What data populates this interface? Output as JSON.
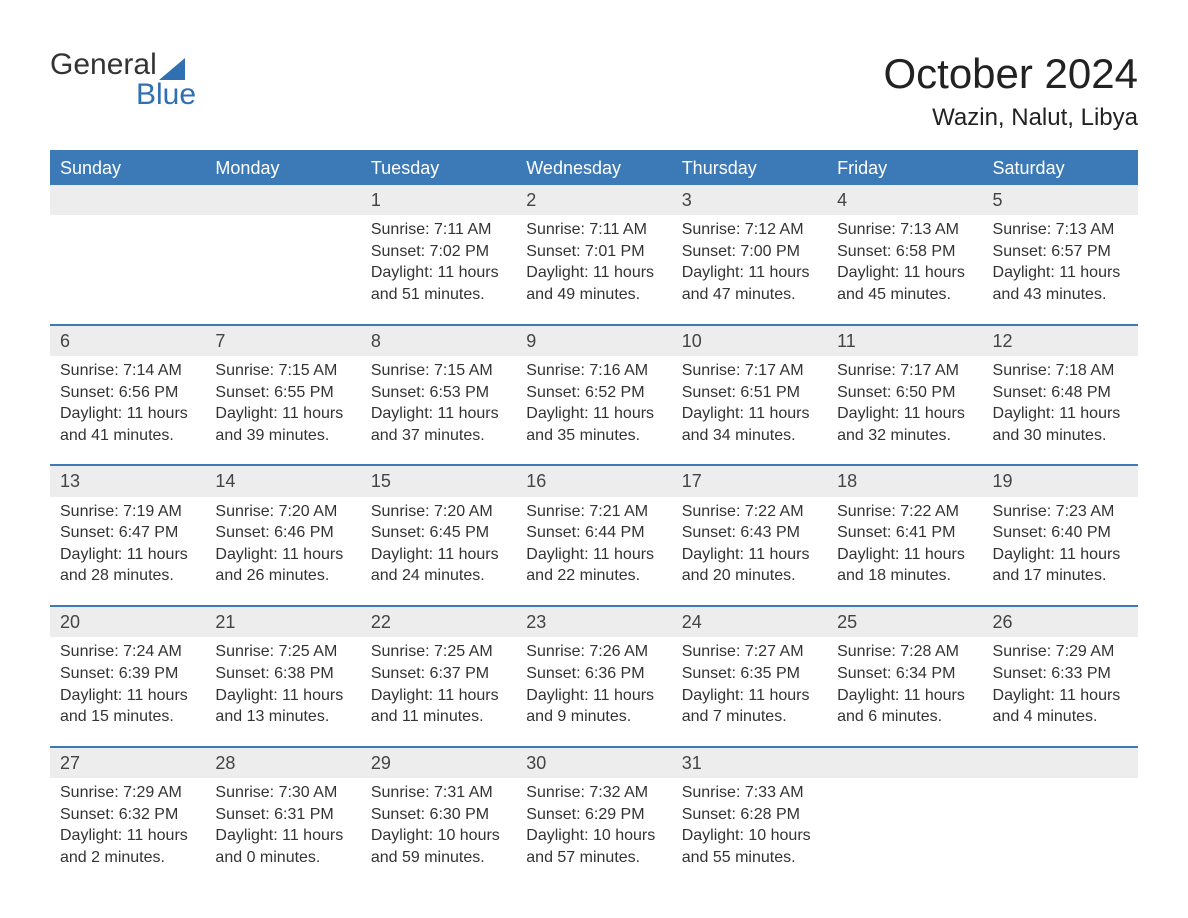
{
  "logo": {
    "line1": "General",
    "line2": "Blue",
    "accent_color": "#2f6fb2"
  },
  "title": "October 2024",
  "location": "Wazin, Nalut, Libya",
  "colors": {
    "header_bg": "#3b79b7",
    "header_text": "#ffffff",
    "day_band_bg": "#ededed",
    "row_border": "#3b79b7",
    "text": "#333333",
    "background": "#ffffff"
  },
  "weekdays": [
    "Sunday",
    "Monday",
    "Tuesday",
    "Wednesday",
    "Thursday",
    "Friday",
    "Saturday"
  ],
  "weeks": [
    [
      {
        "day": "",
        "sunrise": "",
        "sunset": "",
        "daylight1": "",
        "daylight2": ""
      },
      {
        "day": "",
        "sunrise": "",
        "sunset": "",
        "daylight1": "",
        "daylight2": ""
      },
      {
        "day": "1",
        "sunrise": "Sunrise: 7:11 AM",
        "sunset": "Sunset: 7:02 PM",
        "daylight1": "Daylight: 11 hours",
        "daylight2": "and 51 minutes."
      },
      {
        "day": "2",
        "sunrise": "Sunrise: 7:11 AM",
        "sunset": "Sunset: 7:01 PM",
        "daylight1": "Daylight: 11 hours",
        "daylight2": "and 49 minutes."
      },
      {
        "day": "3",
        "sunrise": "Sunrise: 7:12 AM",
        "sunset": "Sunset: 7:00 PM",
        "daylight1": "Daylight: 11 hours",
        "daylight2": "and 47 minutes."
      },
      {
        "day": "4",
        "sunrise": "Sunrise: 7:13 AM",
        "sunset": "Sunset: 6:58 PM",
        "daylight1": "Daylight: 11 hours",
        "daylight2": "and 45 minutes."
      },
      {
        "day": "5",
        "sunrise": "Sunrise: 7:13 AM",
        "sunset": "Sunset: 6:57 PM",
        "daylight1": "Daylight: 11 hours",
        "daylight2": "and 43 minutes."
      }
    ],
    [
      {
        "day": "6",
        "sunrise": "Sunrise: 7:14 AM",
        "sunset": "Sunset: 6:56 PM",
        "daylight1": "Daylight: 11 hours",
        "daylight2": "and 41 minutes."
      },
      {
        "day": "7",
        "sunrise": "Sunrise: 7:15 AM",
        "sunset": "Sunset: 6:55 PM",
        "daylight1": "Daylight: 11 hours",
        "daylight2": "and 39 minutes."
      },
      {
        "day": "8",
        "sunrise": "Sunrise: 7:15 AM",
        "sunset": "Sunset: 6:53 PM",
        "daylight1": "Daylight: 11 hours",
        "daylight2": "and 37 minutes."
      },
      {
        "day": "9",
        "sunrise": "Sunrise: 7:16 AM",
        "sunset": "Sunset: 6:52 PM",
        "daylight1": "Daylight: 11 hours",
        "daylight2": "and 35 minutes."
      },
      {
        "day": "10",
        "sunrise": "Sunrise: 7:17 AM",
        "sunset": "Sunset: 6:51 PM",
        "daylight1": "Daylight: 11 hours",
        "daylight2": "and 34 minutes."
      },
      {
        "day": "11",
        "sunrise": "Sunrise: 7:17 AM",
        "sunset": "Sunset: 6:50 PM",
        "daylight1": "Daylight: 11 hours",
        "daylight2": "and 32 minutes."
      },
      {
        "day": "12",
        "sunrise": "Sunrise: 7:18 AM",
        "sunset": "Sunset: 6:48 PM",
        "daylight1": "Daylight: 11 hours",
        "daylight2": "and 30 minutes."
      }
    ],
    [
      {
        "day": "13",
        "sunrise": "Sunrise: 7:19 AM",
        "sunset": "Sunset: 6:47 PM",
        "daylight1": "Daylight: 11 hours",
        "daylight2": "and 28 minutes."
      },
      {
        "day": "14",
        "sunrise": "Sunrise: 7:20 AM",
        "sunset": "Sunset: 6:46 PM",
        "daylight1": "Daylight: 11 hours",
        "daylight2": "and 26 minutes."
      },
      {
        "day": "15",
        "sunrise": "Sunrise: 7:20 AM",
        "sunset": "Sunset: 6:45 PM",
        "daylight1": "Daylight: 11 hours",
        "daylight2": "and 24 minutes."
      },
      {
        "day": "16",
        "sunrise": "Sunrise: 7:21 AM",
        "sunset": "Sunset: 6:44 PM",
        "daylight1": "Daylight: 11 hours",
        "daylight2": "and 22 minutes."
      },
      {
        "day": "17",
        "sunrise": "Sunrise: 7:22 AM",
        "sunset": "Sunset: 6:43 PM",
        "daylight1": "Daylight: 11 hours",
        "daylight2": "and 20 minutes."
      },
      {
        "day": "18",
        "sunrise": "Sunrise: 7:22 AM",
        "sunset": "Sunset: 6:41 PM",
        "daylight1": "Daylight: 11 hours",
        "daylight2": "and 18 minutes."
      },
      {
        "day": "19",
        "sunrise": "Sunrise: 7:23 AM",
        "sunset": "Sunset: 6:40 PM",
        "daylight1": "Daylight: 11 hours",
        "daylight2": "and 17 minutes."
      }
    ],
    [
      {
        "day": "20",
        "sunrise": "Sunrise: 7:24 AM",
        "sunset": "Sunset: 6:39 PM",
        "daylight1": "Daylight: 11 hours",
        "daylight2": "and 15 minutes."
      },
      {
        "day": "21",
        "sunrise": "Sunrise: 7:25 AM",
        "sunset": "Sunset: 6:38 PM",
        "daylight1": "Daylight: 11 hours",
        "daylight2": "and 13 minutes."
      },
      {
        "day": "22",
        "sunrise": "Sunrise: 7:25 AM",
        "sunset": "Sunset: 6:37 PM",
        "daylight1": "Daylight: 11 hours",
        "daylight2": "and 11 minutes."
      },
      {
        "day": "23",
        "sunrise": "Sunrise: 7:26 AM",
        "sunset": "Sunset: 6:36 PM",
        "daylight1": "Daylight: 11 hours",
        "daylight2": "and 9 minutes."
      },
      {
        "day": "24",
        "sunrise": "Sunrise: 7:27 AM",
        "sunset": "Sunset: 6:35 PM",
        "daylight1": "Daylight: 11 hours",
        "daylight2": "and 7 minutes."
      },
      {
        "day": "25",
        "sunrise": "Sunrise: 7:28 AM",
        "sunset": "Sunset: 6:34 PM",
        "daylight1": "Daylight: 11 hours",
        "daylight2": "and 6 minutes."
      },
      {
        "day": "26",
        "sunrise": "Sunrise: 7:29 AM",
        "sunset": "Sunset: 6:33 PM",
        "daylight1": "Daylight: 11 hours",
        "daylight2": "and 4 minutes."
      }
    ],
    [
      {
        "day": "27",
        "sunrise": "Sunrise: 7:29 AM",
        "sunset": "Sunset: 6:32 PM",
        "daylight1": "Daylight: 11 hours",
        "daylight2": "and 2 minutes."
      },
      {
        "day": "28",
        "sunrise": "Sunrise: 7:30 AM",
        "sunset": "Sunset: 6:31 PM",
        "daylight1": "Daylight: 11 hours",
        "daylight2": "and 0 minutes."
      },
      {
        "day": "29",
        "sunrise": "Sunrise: 7:31 AM",
        "sunset": "Sunset: 6:30 PM",
        "daylight1": "Daylight: 10 hours",
        "daylight2": "and 59 minutes."
      },
      {
        "day": "30",
        "sunrise": "Sunrise: 7:32 AM",
        "sunset": "Sunset: 6:29 PM",
        "daylight1": "Daylight: 10 hours",
        "daylight2": "and 57 minutes."
      },
      {
        "day": "31",
        "sunrise": "Sunrise: 7:33 AM",
        "sunset": "Sunset: 6:28 PM",
        "daylight1": "Daylight: 10 hours",
        "daylight2": "and 55 minutes."
      },
      {
        "day": "",
        "sunrise": "",
        "sunset": "",
        "daylight1": "",
        "daylight2": ""
      },
      {
        "day": "",
        "sunrise": "",
        "sunset": "",
        "daylight1": "",
        "daylight2": ""
      }
    ]
  ]
}
